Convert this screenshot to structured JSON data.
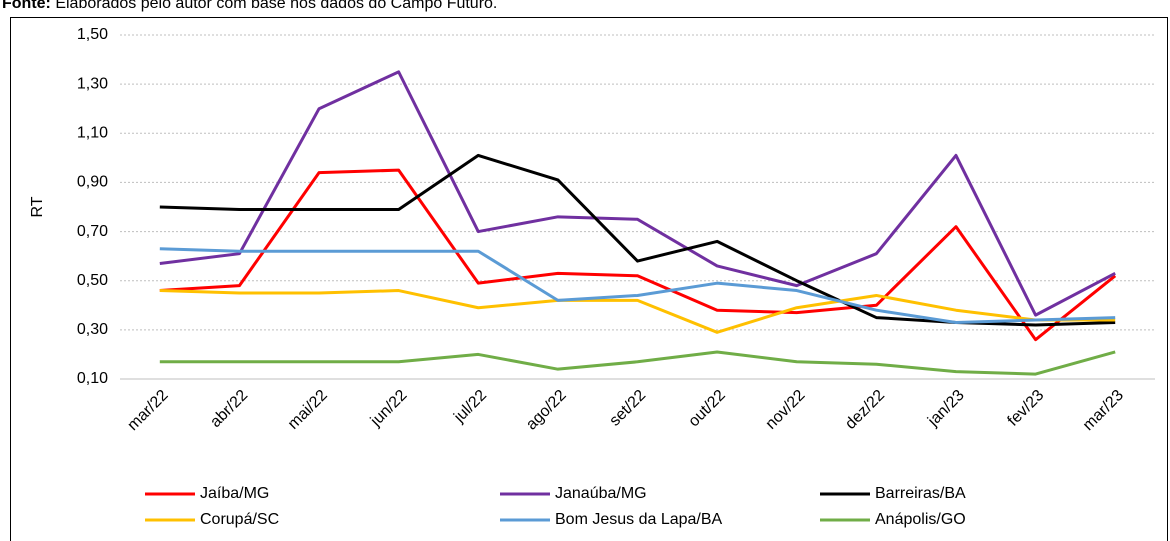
{
  "chart_data": {
    "type": "line",
    "source_label": "Fonte:",
    "source": "Elaborados pelo autor com base nos dados do Campo Futuro.",
    "y_label": "RT",
    "categories": [
      "mar/22",
      "abr/22",
      "mai/22",
      "jun/22",
      "jul/22",
      "ago/22",
      "set/22",
      "out/22",
      "nov/22",
      "dez/22",
      "jan/23",
      "fev/23",
      "mar/23"
    ],
    "series": [
      {
        "name": "Jaíba/MG",
        "color": "#ff0000",
        "values": [
          0.46,
          0.48,
          0.94,
          0.95,
          0.49,
          0.53,
          0.52,
          0.38,
          0.37,
          0.4,
          0.72,
          0.26,
          0.52
        ]
      },
      {
        "name": "Janaúba/MG",
        "color": "#7030a0",
        "values": [
          0.57,
          0.61,
          1.2,
          1.35,
          0.7,
          0.76,
          0.75,
          0.56,
          0.48,
          0.61,
          1.01,
          0.36,
          0.53
        ]
      },
      {
        "name": "Barreiras/BA",
        "color": "#000000",
        "values": [
          0.8,
          0.79,
          0.79,
          0.79,
          1.01,
          0.91,
          0.58,
          0.66,
          0.5,
          0.35,
          0.33,
          0.32,
          0.33
        ]
      },
      {
        "name": "Corupá/SC",
        "color": "#ffc000",
        "values": [
          0.46,
          0.45,
          0.45,
          0.46,
          0.39,
          0.42,
          0.42,
          0.29,
          0.39,
          0.44,
          0.38,
          0.34,
          0.34
        ]
      },
      {
        "name": "Bom Jesus da Lapa/BA",
        "color": "#5b9bd5",
        "values": [
          0.63,
          0.62,
          0.62,
          0.62,
          0.62,
          0.42,
          0.44,
          0.49,
          0.46,
          0.38,
          0.33,
          0.34,
          0.35
        ]
      },
      {
        "name": "Anápolis/GO",
        "color": "#70ad47",
        "values": [
          0.17,
          0.17,
          0.17,
          0.17,
          0.2,
          0.14,
          0.17,
          0.21,
          0.17,
          0.16,
          0.13,
          0.12,
          0.21
        ]
      }
    ],
    "ylim": [
      0.1,
      1.5
    ],
    "yticks": [
      {
        "value": 0.1,
        "label": "0,10"
      },
      {
        "value": 0.3,
        "label": "0,30"
      },
      {
        "value": 0.5,
        "label": "0,50"
      },
      {
        "value": 0.7,
        "label": "0,70"
      },
      {
        "value": 0.9,
        "label": "0,90"
      },
      {
        "value": 1.1,
        "label": "1,10"
      },
      {
        "value": 1.3,
        "label": "1,30"
      },
      {
        "value": 1.5,
        "label": "1,50"
      }
    ],
    "grid": true
  }
}
